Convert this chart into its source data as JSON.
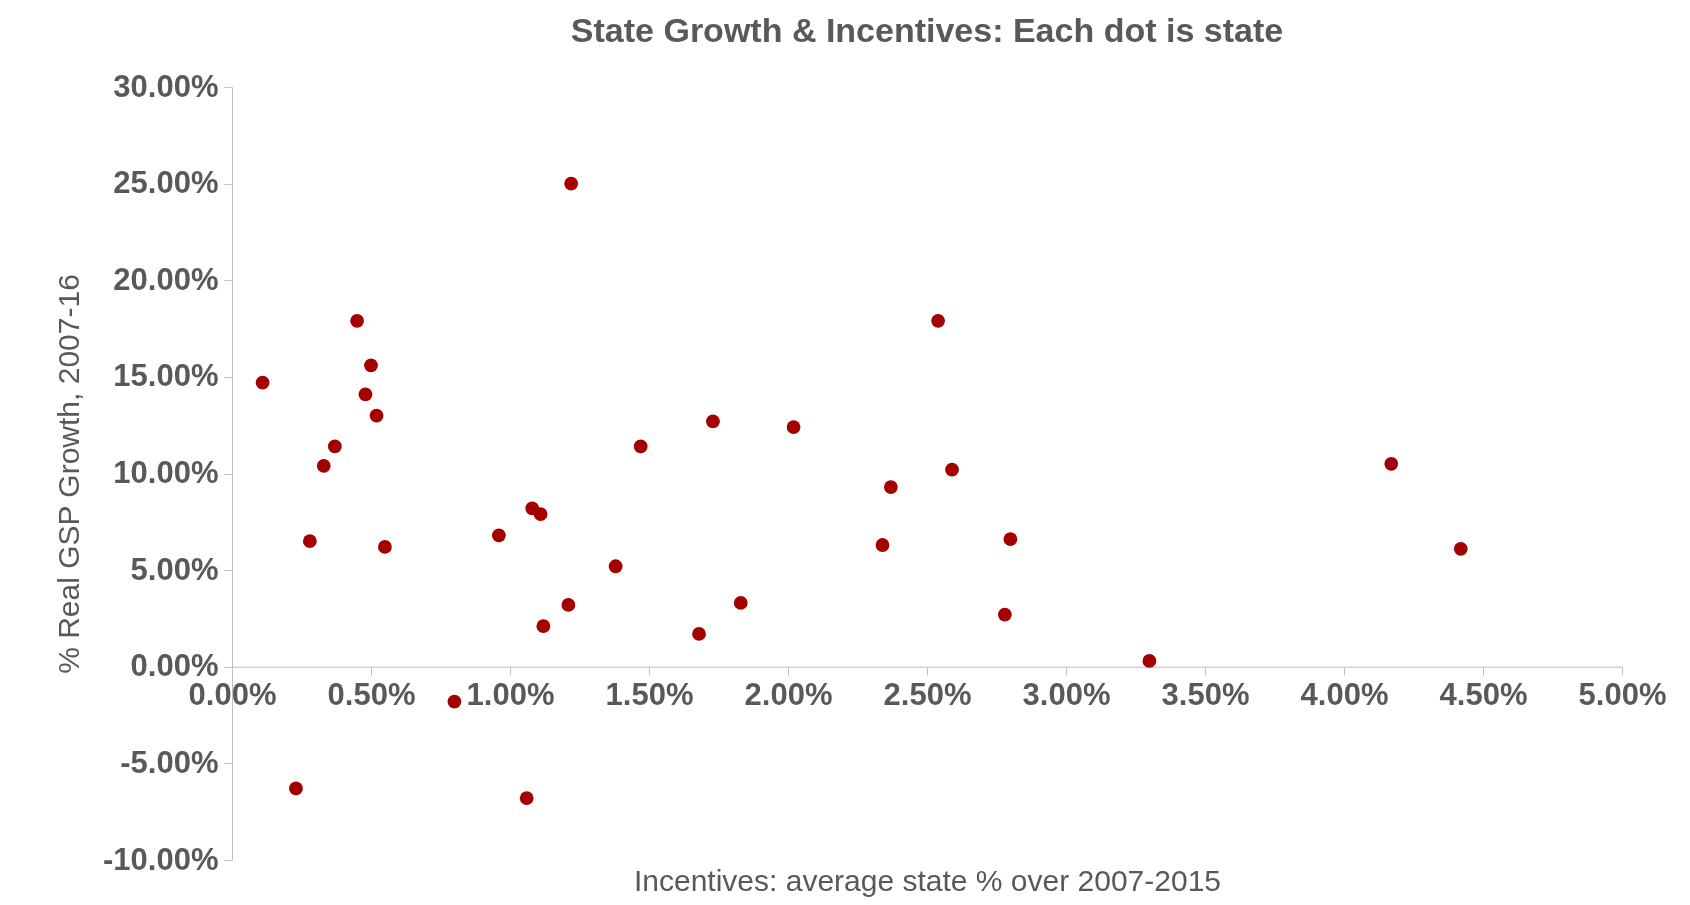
{
  "chart_data": {
    "type": "scatter",
    "title": "State Growth & Incentives: Each dot is state",
    "xlabel": "Incentives: average state % over 2007-2015",
    "ylabel": "% Real GSP Growth, 2007-16",
    "marker": "circle",
    "grid": false,
    "x": [
      0.11,
      0.23,
      0.28,
      0.33,
      0.37,
      0.45,
      0.48,
      0.5,
      0.52,
      0.55,
      0.8,
      0.96,
      1.06,
      1.08,
      1.11,
      1.12,
      1.22,
      1.21,
      1.38,
      1.47,
      1.68,
      1.73,
      1.83,
      2.02,
      2.34,
      2.37,
      2.54,
      2.59,
      2.78,
      2.8,
      3.3,
      4.17,
      4.42
    ],
    "series": [
      {
        "color": "#a50000",
        "values": [
          14.7,
          -6.3,
          6.5,
          10.4,
          11.4,
          17.9,
          14.1,
          15.6,
          13.0,
          6.2,
          -1.8,
          6.8,
          -6.8,
          8.2,
          7.9,
          2.1,
          25.0,
          3.2,
          5.2,
          11.4,
          1.7,
          12.7,
          3.3,
          12.4,
          6.3,
          9.3,
          17.9,
          10.2,
          2.7,
          6.6,
          0.3,
          10.5,
          6.1
        ]
      }
    ],
    "xlim": [
      0,
      5
    ],
    "ylim": [
      -10,
      30
    ],
    "xticks": [
      {
        "value": 0,
        "label": "0.00%"
      },
      {
        "value": 0.5,
        "label": "0.50%"
      },
      {
        "value": 1,
        "label": "1.00%"
      },
      {
        "value": 1.5,
        "label": "1.50%"
      },
      {
        "value": 2,
        "label": "2.00%"
      },
      {
        "value": 2.5,
        "label": "2.50%"
      },
      {
        "value": 3,
        "label": "3.00%"
      },
      {
        "value": 3.5,
        "label": "3.50%"
      },
      {
        "value": 4,
        "label": "4.00%"
      },
      {
        "value": 4.5,
        "label": "4.50%"
      },
      {
        "value": 5,
        "label": "5.00%"
      }
    ],
    "yticks": [
      {
        "value": -10,
        "label": "-10.00%"
      },
      {
        "value": -5,
        "label": "-5.00%"
      },
      {
        "value": 0,
        "label": "0.00%"
      },
      {
        "value": 5,
        "label": "5.00%"
      },
      {
        "value": 10,
        "label": "10.00%"
      },
      {
        "value": 15,
        "label": "15.00%"
      },
      {
        "value": 20,
        "label": "20.00%"
      },
      {
        "value": 25,
        "label": "25.00%"
      },
      {
        "value": 30,
        "label": "30.00%"
      }
    ]
  }
}
